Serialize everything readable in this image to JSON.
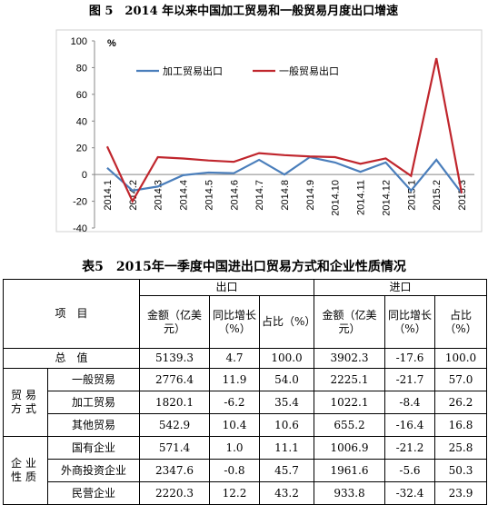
{
  "chart_data": {
    "type": "line",
    "title": "图 5　2014 年以来中国加工贸易和一般贸易月度出口增速",
    "y_unit": "%",
    "categories": [
      "2014.1",
      "2014.2",
      "2014.3",
      "2014.4",
      "2014.5",
      "2014.6",
      "2014.7",
      "2014.8",
      "2014.9",
      "2014.10",
      "2014.11",
      "2014.12",
      "2015.1",
      "2015.2",
      "2015.3"
    ],
    "series": [
      {
        "name": "加工贸易出口",
        "color": "#4a7ebb",
        "values": [
          5,
          -12,
          -9,
          -0.5,
          1.5,
          1,
          11,
          0,
          13,
          9,
          2,
          9,
          -12,
          11,
          -14
        ]
      },
      {
        "name": "一般贸易出口",
        "color": "#c0262d",
        "values": [
          21,
          -20,
          13,
          12,
          10.5,
          9.5,
          16,
          14.5,
          13.5,
          13,
          8,
          12,
          -1,
          87,
          -14
        ]
      }
    ],
    "ylim": [
      -40,
      100
    ],
    "yticks": [
      -40,
      -20,
      0,
      20,
      40,
      60,
      80,
      100
    ],
    "grid": false
  },
  "table": {
    "title": "表5　2015年一季度中国进出口贸易方式和企业性质情况",
    "header": {
      "item": "项　目",
      "export": "出口",
      "import": "进口",
      "columns": [
        "金额（亿美元）",
        "同比增长（%）",
        "占比（%）",
        "金额（亿美元）",
        "同比增长（%）",
        "占比（%）"
      ]
    },
    "total": {
      "label": "总　值",
      "cells": [
        "5139.3",
        "4.7",
        "100.0",
        "3902.3",
        "-17.6",
        "100.0"
      ]
    },
    "groups": [
      {
        "label": "贸易方式",
        "rows": [
          {
            "label": "一般贸易",
            "cells": [
              "2776.4",
              "11.9",
              "54.0",
              "2225.1",
              "-21.7",
              "57.0"
            ]
          },
          {
            "label": "加工贸易",
            "cells": [
              "1820.1",
              "-6.2",
              "35.4",
              "1022.1",
              "-8.4",
              "26.2"
            ]
          },
          {
            "label": "其他贸易",
            "cells": [
              "542.9",
              "10.4",
              "10.6",
              "655.2",
              "-16.4",
              "16.8"
            ]
          }
        ]
      },
      {
        "label": "企业性质",
        "rows": [
          {
            "label": "国有企业",
            "cells": [
              "571.4",
              "1.0",
              "11.1",
              "1006.9",
              "-21.2",
              "25.8"
            ]
          },
          {
            "label": "外商投资企业",
            "cells": [
              "2347.6",
              "-0.8",
              "45.7",
              "1961.6",
              "-5.6",
              "50.3"
            ]
          },
          {
            "label": "民营企业",
            "cells": [
              "2220.3",
              "12.2",
              "43.2",
              "933.8",
              "-32.4",
              "23.9"
            ]
          }
        ]
      }
    ]
  }
}
